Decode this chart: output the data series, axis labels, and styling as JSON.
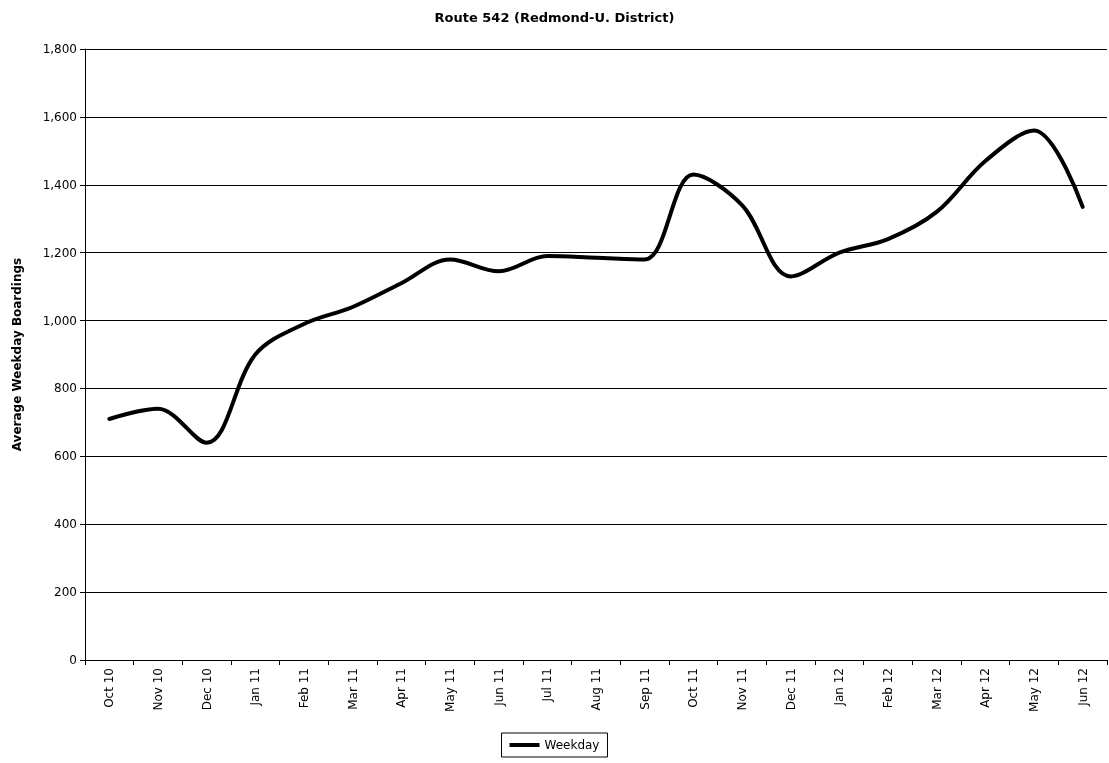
{
  "chart_data": {
    "type": "line",
    "title": "Route 542 (Redmond-U. District)",
    "ylabel": "Average Weekday Boardings",
    "categories": [
      "Oct 10",
      "Nov 10",
      "Dec 10",
      "Jan 11",
      "Feb 11",
      "Mar 11",
      "Apr 11",
      "May 11",
      "Jun 11",
      "Jul 11",
      "Aug 11",
      "Sep 11",
      "Oct 11",
      "Nov 11",
      "Dec 11",
      "Jan 12",
      "Feb 12",
      "Mar 12",
      "Apr 12",
      "May 12",
      "Jun 12"
    ],
    "series": [
      {
        "name": "Weekday",
        "color": "#000000",
        "values": [
          710,
          740,
          640,
          900,
          990,
          1040,
          1110,
          1180,
          1145,
          1190,
          1185,
          1180,
          1430,
          1340,
          1130,
          1200,
          1240,
          1320,
          1470,
          1560,
          1335
        ]
      }
    ],
    "ylim": [
      0,
      1800
    ],
    "yticks": [
      0,
      200,
      400,
      600,
      800,
      {
        "value": 1000,
        "label": "1,000"
      },
      {
        "value": 1200,
        "label": "1,200"
      },
      {
        "value": 1400,
        "label": "1,400"
      },
      {
        "value": 1600,
        "label": "1,600"
      },
      {
        "value": 1800,
        "label": "1,800"
      }
    ],
    "grid": "y",
    "legend": "bottom",
    "marker": "none",
    "line_style": "solid"
  }
}
